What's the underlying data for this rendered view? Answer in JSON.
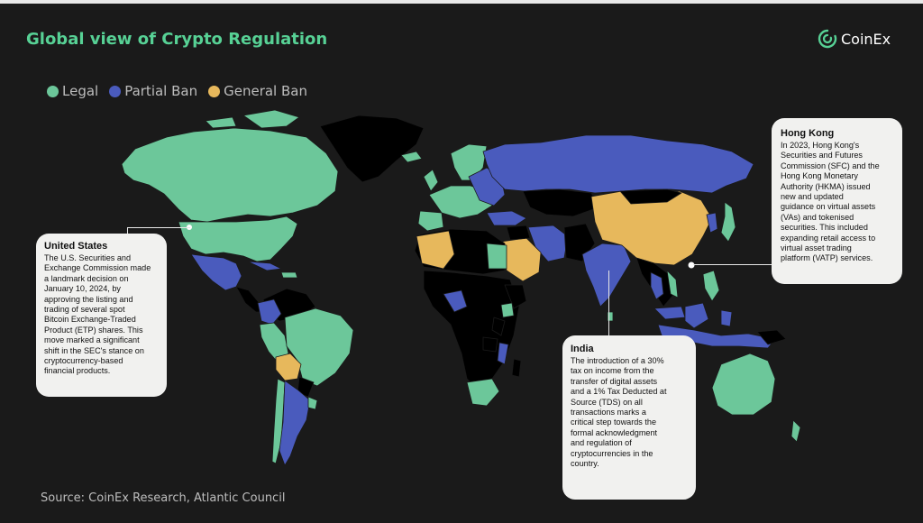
{
  "title": "Global view of Crypto Regulation",
  "brand": {
    "name": "CoinEx",
    "icon": "coinex-logo-icon"
  },
  "legend": [
    {
      "label": "Legal",
      "color": "#6cc79a"
    },
    {
      "label": "Partial Ban",
      "color": "#4a5bbd"
    },
    {
      "label": "General Ban",
      "color": "#e7b85c"
    }
  ],
  "colors": {
    "legal": "#6cc79a",
    "partial_ban": "#4a5bbd",
    "general_ban": "#e7b85c",
    "no_data": "#000000",
    "background": "#1a1a1a",
    "title": "#57d195"
  },
  "callouts": {
    "us": {
      "title": "United States",
      "lines": [
        "The U.S. Securities and",
        "Exchange Commission made",
        "a landmark decision on",
        "January 10, 2024, by",
        "approving the listing and",
        "trading of several spot",
        "Bitcoin Exchange-Traded",
        "Product (ETP) shares. This",
        "move marked a significant",
        "shift in the SEC's stance on",
        "cryptocurrency-based",
        "financial products."
      ]
    },
    "india": {
      "title": "India",
      "lines": [
        "The introduction of a 30%",
        "tax on income from the",
        "transfer of digital assets",
        "and a 1% Tax Deducted at",
        "Source (TDS) on all",
        "transactions marks a",
        "critical step towards the",
        "formal acknowledgment",
        "and regulation of",
        "cryptocurrencies in the",
        "country."
      ]
    },
    "hong_kong": {
      "title": "Hong Kong",
      "lines": [
        "In 2023, Hong Kong's",
        "Securities and Futures",
        "Commission (SFC) and the",
        "Hong Kong Monetary",
        "Authority (HKMA) issued",
        "new and updated",
        "guidance on virtual assets",
        "(VAs) and tokenised",
        "securities. This included",
        "expanding retail access to",
        "virtual asset trading",
        "platform (VATP) services."
      ]
    }
  },
  "source": "Source: CoinEx Research, Atlantic Council"
}
